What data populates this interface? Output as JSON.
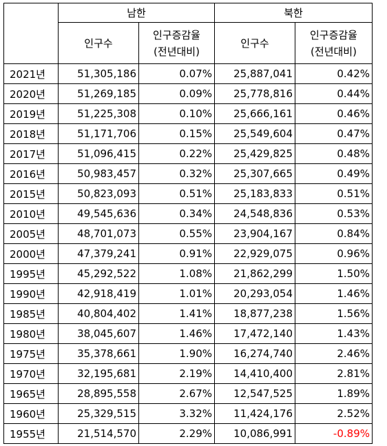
{
  "header": {
    "south": "남한",
    "north": "북한",
    "population": "인구수",
    "growth_line1": "인구증감율",
    "growth_line2": "(전년대비)"
  },
  "rows": [
    {
      "year": "2021년",
      "s_pop": "51,305,186",
      "s_rate": "0.07%",
      "n_pop": "25,887,041",
      "n_rate": "0.42%"
    },
    {
      "year": "2020년",
      "s_pop": "51,269,185",
      "s_rate": "0.09%",
      "n_pop": "25,778,816",
      "n_rate": "0.44%"
    },
    {
      "year": "2019년",
      "s_pop": "51,225,308",
      "s_rate": "0.10%",
      "n_pop": "25,666,161",
      "n_rate": "0.46%"
    },
    {
      "year": "2018년",
      "s_pop": "51,171,706",
      "s_rate": "0.15%",
      "n_pop": "25,549,604",
      "n_rate": "0.47%"
    },
    {
      "year": "2017년",
      "s_pop": "51,096,415",
      "s_rate": "0.22%",
      "n_pop": "25,429,825",
      "n_rate": "0.48%"
    },
    {
      "year": "2016년",
      "s_pop": "50,983,457",
      "s_rate": "0.32%",
      "n_pop": "25,307,665",
      "n_rate": "0.49%"
    },
    {
      "year": "2015년",
      "s_pop": "50,823,093",
      "s_rate": "0.51%",
      "n_pop": "25,183,833",
      "n_rate": "0.51%"
    },
    {
      "year": "2010년",
      "s_pop": "49,545,636",
      "s_rate": "0.34%",
      "n_pop": "24,548,836",
      "n_rate": "0.53%"
    },
    {
      "year": "2005년",
      "s_pop": "48,701,073",
      "s_rate": "0.55%",
      "n_pop": "23,904,167",
      "n_rate": "0.84%"
    },
    {
      "year": "2000년",
      "s_pop": "47,379,241",
      "s_rate": "0.91%",
      "n_pop": "22,929,075",
      "n_rate": "0.96%"
    },
    {
      "year": "1995년",
      "s_pop": "45,292,522",
      "s_rate": "1.08%",
      "n_pop": "21,862,299",
      "n_rate": "1.50%"
    },
    {
      "year": "1990년",
      "s_pop": "42,918,419",
      "s_rate": "1.01%",
      "n_pop": "20,293,054",
      "n_rate": "1.46%"
    },
    {
      "year": "1985년",
      "s_pop": "40,804,402",
      "s_rate": "1.41%",
      "n_pop": "18,877,238",
      "n_rate": "1.56%"
    },
    {
      "year": "1980년",
      "s_pop": "38,045,607",
      "s_rate": "1.46%",
      "n_pop": "17,472,140",
      "n_rate": "1.43%"
    },
    {
      "year": "1975년",
      "s_pop": "35,378,661",
      "s_rate": "1.90%",
      "n_pop": "16,274,740",
      "n_rate": "2.46%"
    },
    {
      "year": "1970년",
      "s_pop": "32,195,681",
      "s_rate": "2.19%",
      "n_pop": "14,410,400",
      "n_rate": "2.81%"
    },
    {
      "year": "1965년",
      "s_pop": "28,895,558",
      "s_rate": "2.67%",
      "n_pop": "12,547,525",
      "n_rate": "1.89%"
    },
    {
      "year": "1960년",
      "s_pop": "25,329,515",
      "s_rate": "3.32%",
      "n_pop": "11,424,176",
      "n_rate": "2.52%"
    },
    {
      "year": "1955년",
      "s_pop": "21,514,570",
      "s_rate": "2.29%",
      "n_pop": "10,086,991",
      "n_rate": "-0.89%"
    }
  ],
  "colors": {
    "negative": "#ff0000"
  }
}
